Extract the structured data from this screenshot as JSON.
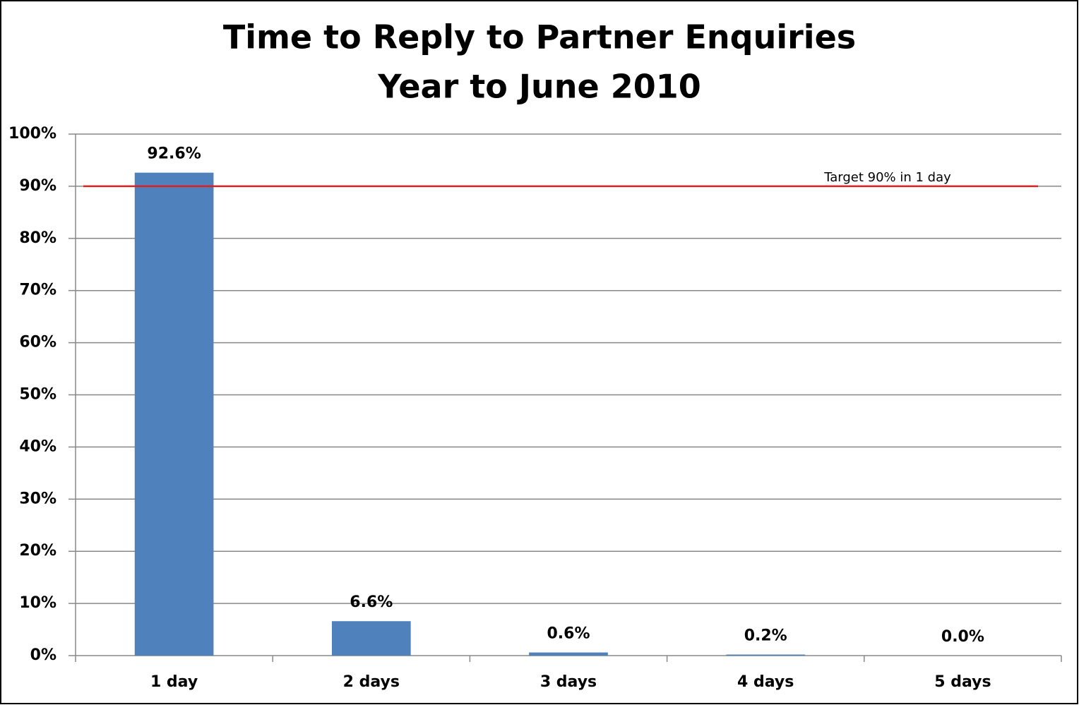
{
  "chart_data": {
    "type": "bar",
    "title": "Time to Reply to Partner Enquiries",
    "subtitle": "Year to June 2010",
    "categories": [
      "1 day",
      "2 days",
      "3 days",
      "4 days",
      "5 days"
    ],
    "values": [
      92.6,
      6.6,
      0.6,
      0.2,
      0.0
    ],
    "value_labels": [
      "92.6%",
      "6.6%",
      "0.6%",
      "0.2%",
      "0.0%"
    ],
    "color": "#4f81bd",
    "ylim": [
      0,
      100
    ],
    "yticks": [
      {
        "value": 0,
        "label": "0%"
      },
      {
        "value": 10,
        "label": "10%"
      },
      {
        "value": 20,
        "label": "20%"
      },
      {
        "value": 30,
        "label": "30%"
      },
      {
        "value": 40,
        "label": "40%"
      },
      {
        "value": 50,
        "label": "50%"
      },
      {
        "value": 60,
        "label": "60%"
      },
      {
        "value": 70,
        "label": "70%"
      },
      {
        "value": 80,
        "label": "80%"
      },
      {
        "value": 90,
        "label": "90%"
      },
      {
        "value": 100,
        "label": "100%"
      }
    ],
    "grid": true,
    "target": {
      "value": 90,
      "label": "Target 90% in 1 day",
      "color": "#e02020"
    }
  }
}
